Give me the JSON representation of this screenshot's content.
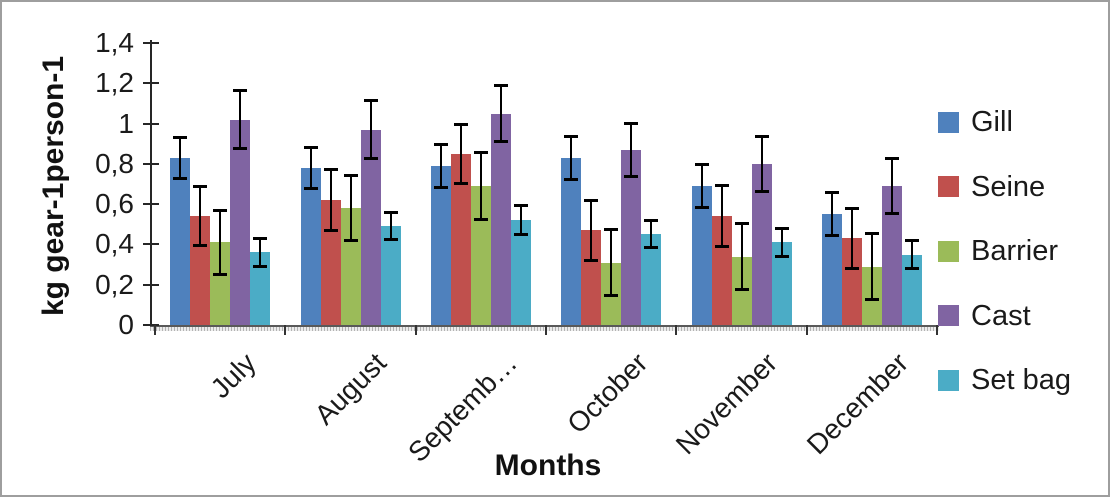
{
  "frame": {
    "border_color": "#9e9e9e",
    "background": "#ffffff"
  },
  "chart_data": {
    "type": "bar",
    "title": "",
    "xlabel": "Months",
    "ylabel": "kg gear-1person-1",
    "categories": [
      "July",
      "August",
      "Septemb…",
      "October",
      "November",
      "December"
    ],
    "series": [
      {
        "name": "Gill",
        "color": "#4F81BD",
        "values": [
          0.83,
          0.78,
          0.79,
          0.83,
          0.69,
          0.55
        ],
        "errors": [
          0.105,
          0.105,
          0.11,
          0.11,
          0.11,
          0.11
        ]
      },
      {
        "name": "Seine",
        "color": "#C0504D",
        "values": [
          0.54,
          0.62,
          0.85,
          0.47,
          0.54,
          0.43
        ],
        "errors": [
          0.15,
          0.155,
          0.15,
          0.15,
          0.155,
          0.15
        ]
      },
      {
        "name": "Barrier",
        "color": "#9BBB59",
        "values": [
          0.41,
          0.58,
          0.69,
          0.31,
          0.34,
          0.29
        ],
        "errors": [
          0.16,
          0.165,
          0.17,
          0.165,
          0.165,
          0.165
        ]
      },
      {
        "name": "Cast",
        "color": "#8064A2",
        "values": [
          1.02,
          0.97,
          1.05,
          0.87,
          0.8,
          0.69
        ],
        "errors": [
          0.145,
          0.145,
          0.14,
          0.135,
          0.14,
          0.14
        ]
      },
      {
        "name": "Set bag",
        "color": "#4BACC6",
        "values": [
          0.36,
          0.49,
          0.52,
          0.45,
          0.41,
          0.35
        ],
        "errors": [
          0.07,
          0.07,
          0.075,
          0.07,
          0.07,
          0.07
        ]
      }
    ],
    "ylim": [
      0,
      1.4
    ],
    "ytick_step": 0.2,
    "ytick_labels": [
      "0",
      "0,2",
      "0,4",
      "0,6",
      "0,8",
      "1",
      "1,2",
      "1,4"
    ],
    "grid": false,
    "error_bars": true,
    "legend_position": "right"
  }
}
